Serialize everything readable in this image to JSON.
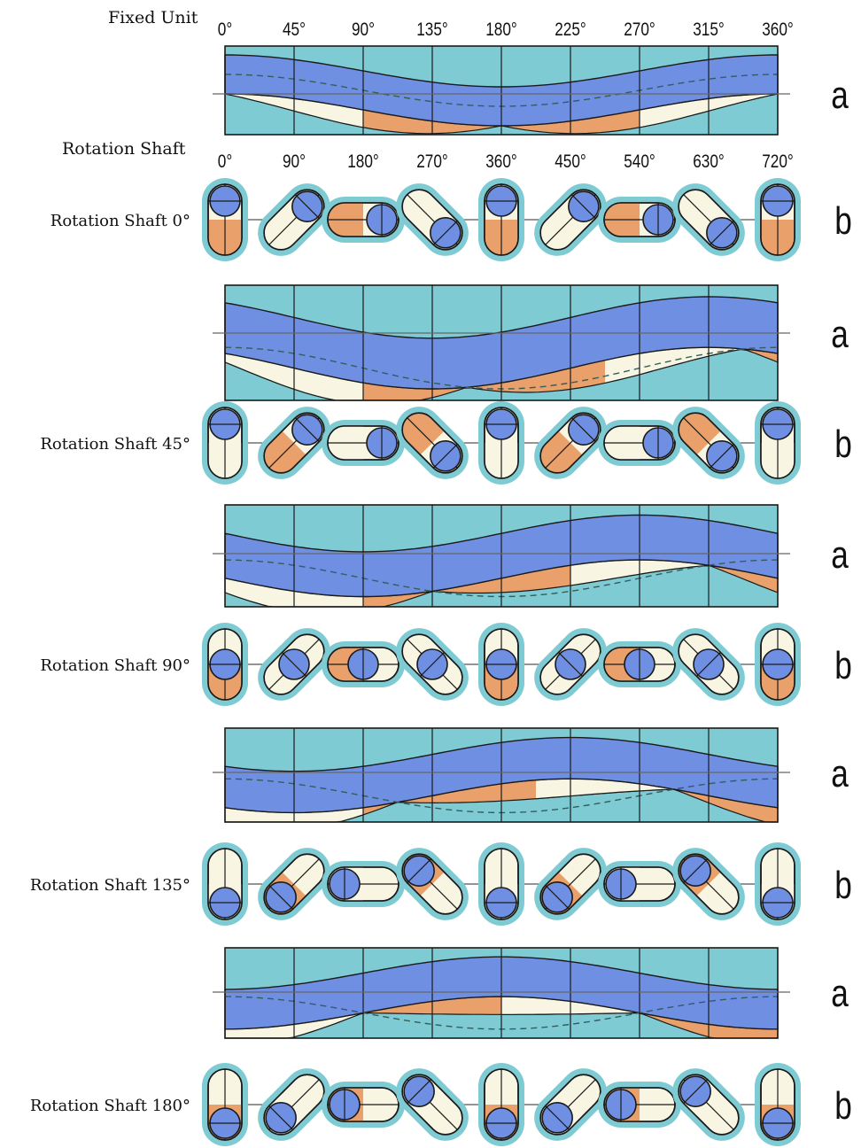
{
  "header": {
    "fixed_unit_label": "Fixed Unit",
    "rotation_shaft_label": "Rotation Shaft",
    "fixed_unit_ticks": [
      "0°",
      "45°",
      "90°",
      "135°",
      "180°",
      "225°",
      "270°",
      "315°",
      "360°"
    ],
    "rotation_shaft_ticks": [
      "0°",
      "90°",
      "180°",
      "270°",
      "360°",
      "450°",
      "540°",
      "630°",
      "720°"
    ]
  },
  "row_letters": {
    "a": "a",
    "b": "b"
  },
  "rows": [
    {
      "label": "Rotation Shaft 0°",
      "shaft_deg": 0
    },
    {
      "label": "Rotation Shaft 45°",
      "shaft_deg": 45
    },
    {
      "label": "Rotation Shaft 90°",
      "shaft_deg": 90
    },
    {
      "label": "Rotation Shaft 135°",
      "shaft_deg": 135
    },
    {
      "label": "Rotation Shaft 180°",
      "shaft_deg": 180
    }
  ],
  "colors": {
    "cyan": "#7fcbd3",
    "blue": "#6f8fe3",
    "orange": "#e9a06a",
    "cream": "#f8f6e2",
    "line": "#1a1a1a",
    "text": "#111111"
  }
}
